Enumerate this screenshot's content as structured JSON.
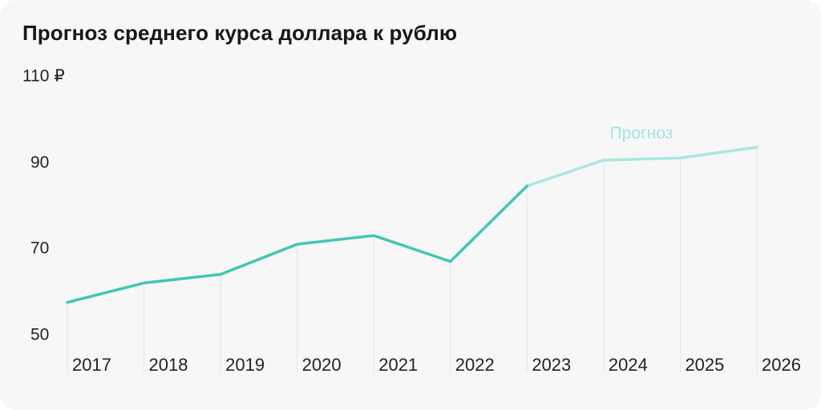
{
  "chart": {
    "title": "Прогноз среднего курса доллара к рублю",
    "forecast_label": "Прогноз"
  },
  "chart_data": {
    "type": "line",
    "title": "Прогноз среднего курса доллара к рублю",
    "xlabel": "",
    "ylabel": "₽",
    "categories": [
      "2017",
      "2018",
      "2019",
      "2020",
      "2021",
      "2022",
      "2023",
      "2024",
      "2025",
      "2026"
    ],
    "values": [
      57.5,
      62,
      64,
      71,
      73,
      67,
      84.5,
      90.5,
      91,
      93.5
    ],
    "forecast_start_index": 6,
    "annotation": {
      "text": "Прогноз",
      "attached_to": "forecast-segment"
    },
    "yticks": [
      {
        "value": 110,
        "label": "110 ₽"
      },
      {
        "value": 90,
        "label": "90"
      },
      {
        "value": 70,
        "label": "70"
      },
      {
        "value": 50,
        "label": "50"
      }
    ],
    "ylim": [
      41,
      116
    ],
    "grid": "vertical-drop-lines-only",
    "legend": "none",
    "colors": {
      "actual_line": "#41c6b5",
      "forecast_line": "#a9e7e0",
      "annotation_text": "#a3e4dc",
      "gridline": "#e3e4e6",
      "axis_text": "#212327",
      "title_text": "#17181a"
    }
  }
}
